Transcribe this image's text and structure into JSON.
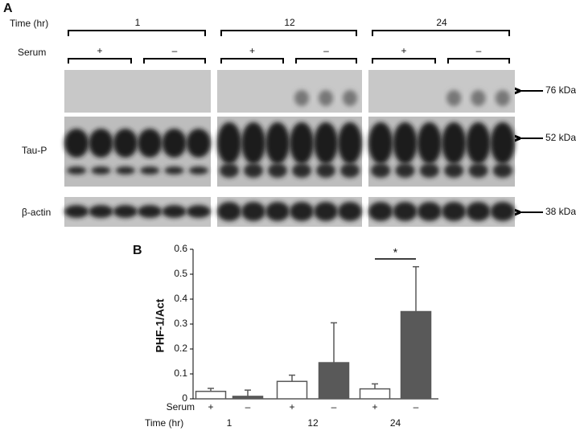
{
  "panel_a": {
    "label": "A",
    "rows": [
      "Tau-P",
      "β-actin"
    ],
    "markers": [
      "76 kDa",
      "52 kDa",
      "38 kDa"
    ]
  },
  "chart_data": {
    "type": "bar",
    "panel_label": "B",
    "ylabel": "PHF-1/Act",
    "serum_label": "Serum",
    "time_label": "Time (hr)",
    "categories": [
      "+",
      "–",
      "+",
      "–",
      "+",
      "–"
    ],
    "groups": [
      "1",
      "12",
      "24"
    ],
    "values": [
      0.03,
      0.01,
      0.07,
      0.145,
      0.04,
      0.35
    ],
    "errors": [
      0.012,
      0.025,
      0.025,
      0.16,
      0.02,
      0.18
    ],
    "colors": [
      "#ffffff",
      "#595959",
      "#ffffff",
      "#595959",
      "#ffffff",
      "#595959"
    ],
    "edge_color": "#595959",
    "annotation": "*",
    "ylim": [
      0,
      0.6
    ],
    "yticks": [
      0,
      0.1,
      0.2,
      0.3,
      0.4,
      0.5,
      0.6
    ]
  }
}
